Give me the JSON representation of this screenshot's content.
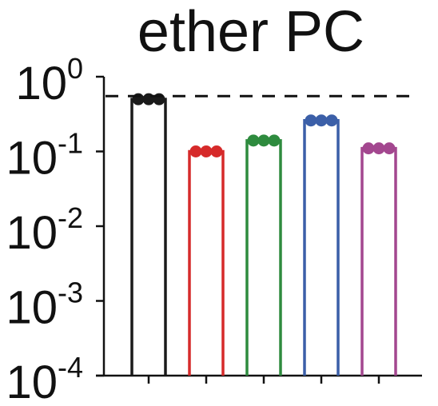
{
  "chart_data": {
    "type": "bar",
    "title": "ether PC",
    "xlabel": "",
    "ylabel": "",
    "yscale": "log",
    "ylim": [
      0.0001,
      1
    ],
    "yticks": [
      {
        "value": 1,
        "base": "10",
        "exp": "0"
      },
      {
        "value": 0.1,
        "base": "10",
        "exp": "-1"
      },
      {
        "value": 0.01,
        "base": "10",
        "exp": "-2"
      },
      {
        "value": 0.001,
        "base": "10",
        "exp": "-3"
      },
      {
        "value": 0.0001,
        "base": "10",
        "exp": "-4"
      }
    ],
    "reference_line": {
      "value": 0.55,
      "style": "dashed",
      "color": "#111111"
    },
    "grid": false,
    "series": [
      {
        "color": "#1a1a1a",
        "value": 0.5,
        "points": [
          0.5,
          0.5,
          0.5
        ]
      },
      {
        "color": "#d62a2a",
        "value": 0.1,
        "points": [
          0.1,
          0.1,
          0.1
        ]
      },
      {
        "color": "#2e8b3e",
        "value": 0.14,
        "points": [
          0.14,
          0.14,
          0.14
        ]
      },
      {
        "color": "#3b5fa8",
        "value": 0.26,
        "points": [
          0.26,
          0.26,
          0.26
        ]
      },
      {
        "color": "#a3478f",
        "value": 0.11,
        "points": [
          0.11,
          0.11,
          0.11
        ]
      }
    ]
  }
}
